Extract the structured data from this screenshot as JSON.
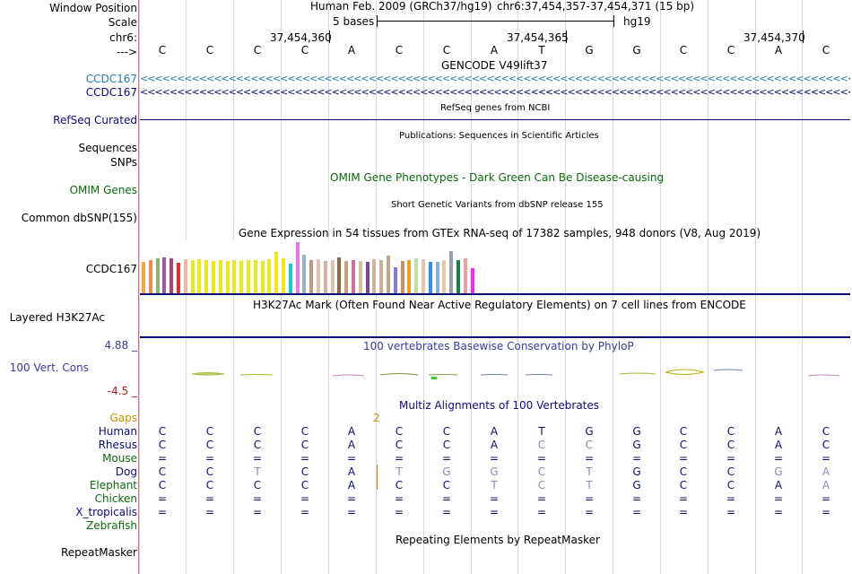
{
  "colors": {
    "navy": "#0c0c78",
    "gencode_blue": "#2a7bb0",
    "omim_green": "#0c6a0c",
    "cons_blue": "#3a3a9a",
    "cons_red": "#aa2020",
    "gaps_orange": "#d48a00",
    "dim_base": "#8a8ab8",
    "divider": "#e07070"
  },
  "header": {
    "window_position_label": "Window Position",
    "assembly": "Human Feb. 2009 (GRCh37/hg19)",
    "position": "chr6:37,454,357-37,454,371 (15 bp)",
    "scale_label": "Scale",
    "scale_text": "5 bases",
    "scale_db": "hg19",
    "chrom_label": "chr6:",
    "ticks": [
      "37,454,360",
      "37,454,365",
      "37,454,370"
    ],
    "strand_label": "--->"
  },
  "bases": [
    "C",
    "C",
    "C",
    "C",
    "A",
    "C",
    "C",
    "A",
    "T",
    "G",
    "G",
    "C",
    "C",
    "A",
    "C"
  ],
  "gencode": {
    "title": "GENCODE V49lift37",
    "rows": [
      {
        "name": "CCDC167",
        "arrows": "<<<<<<<<<<<<<<<<<<<<<<<<<<<<<<<<<<<<<<<<<<<<<<<<<<<<<<<<<<<<<<<<<<<<<<<<<<<<<<<<<<<<<<<<<<<<<<<<<<<<<<<<<<<<<<<<<<<<<<<<<"
      },
      {
        "name": "CCDC167",
        "arrows": "<<<<<<<<<<<<<<<<<<<<<<<<<<<<<<<<<<<<<<<<<<<<<<<<<<<<<<<<<<<<<<<<<<<<<<<<<<<<<<<<<<<<<<<<<<<<<<<<<<<<<<<<<<<<<<<<<<<<<<<<<"
      }
    ]
  },
  "refseq": {
    "title": "RefSeq genes from NCBI",
    "label": "RefSeq Curated"
  },
  "publications": {
    "title": "Publications: Sequences in Scientific Articles",
    "labels": [
      "Sequences",
      "SNPs"
    ]
  },
  "omim": {
    "title": "OMIM Gene Phenotypes - Dark Green Can Be Disease-causing",
    "label": "OMIM Genes"
  },
  "dbsnp": {
    "title": "Short Genetic Variants from dbSNP release 155",
    "label": "Common dbSNP(155)"
  },
  "gtex": {
    "title": "Gene Expression in 54 tissues from GTEx RNA-seq of 17382 samples, 948 donors (V8, Aug 2019)",
    "label": "CCDC167",
    "bars": [
      {
        "c": "#f5a542",
        "v": 36
      },
      {
        "c": "#f08a50",
        "v": 38
      },
      {
        "c": "#8fb070",
        "v": 40
      },
      {
        "c": "#9a5aa0",
        "v": 41
      },
      {
        "c": "#b04070",
        "v": 40
      },
      {
        "c": "#e82c2c",
        "v": 35
      },
      {
        "c": "#f0b8a0",
        "v": 39
      },
      {
        "c": "#eaea1a",
        "v": 38
      },
      {
        "c": "#eaea1a",
        "v": 39
      },
      {
        "c": "#eaea1a",
        "v": 38
      },
      {
        "c": "#eaea1a",
        "v": 37
      },
      {
        "c": "#eaea1a",
        "v": 38
      },
      {
        "c": "#eaea1a",
        "v": 37
      },
      {
        "c": "#eaea1a",
        "v": 38
      },
      {
        "c": "#eaea1a",
        "v": 37
      },
      {
        "c": "#eaea1a",
        "v": 38
      },
      {
        "c": "#eaea1a",
        "v": 38
      },
      {
        "c": "#eaea1a",
        "v": 37
      },
      {
        "c": "#eaea1a",
        "v": 39
      },
      {
        "c": "#eaea1a",
        "v": 47
      },
      {
        "c": "#eaea1a",
        "v": 40
      },
      {
        "c": "#1ec8c8",
        "v": 34
      },
      {
        "c": "#e678e6",
        "v": 58
      },
      {
        "c": "#9ab0d0",
        "v": 44
      },
      {
        "c": "#b89c82",
        "v": 38
      },
      {
        "c": "#e8c0b0",
        "v": 39
      },
      {
        "c": "#d8b0a8",
        "v": 37
      },
      {
        "c": "#e8c0b0",
        "v": 38
      },
      {
        "c": "#8a6a40",
        "v": 41
      },
      {
        "c": "#c8a080",
        "v": 37
      },
      {
        "c": "#c870a0",
        "v": 38
      },
      {
        "c": "#d8c0a0",
        "v": 37
      },
      {
        "c": "#7a4890",
        "v": 36
      },
      {
        "c": "#d8b0a0",
        "v": 39
      },
      {
        "c": "#c8b090",
        "v": 38
      },
      {
        "c": "#c0a890",
        "v": 43
      },
      {
        "c": "#8878e0",
        "v": 30
      },
      {
        "c": "#c89068",
        "v": 37
      },
      {
        "c": "#f0a020",
        "v": 38
      },
      {
        "c": "#c0e0a0",
        "v": 40
      },
      {
        "c": "#e0c8b0",
        "v": 39
      },
      {
        "c": "#3090e8",
        "v": 36
      },
      {
        "c": "#88b0d8",
        "v": 36
      },
      {
        "c": "#e8c8a8",
        "v": 38
      },
      {
        "c": "#98a0b0",
        "v": 48
      },
      {
        "c": "#188048",
        "v": 38
      },
      {
        "c": "#e8a0a0",
        "v": 40
      },
      {
        "c": "#ff20ff",
        "v": 29
      }
    ]
  },
  "h3k27ac": {
    "title": "H3K27Ac Mark (Often Found Near Active Regulatory Elements) on 7 cell lines from ENCODE",
    "label": "Layered H3K27Ac"
  },
  "conservation": {
    "title": "100 vertebrates Basewise Conservation by PhyloP",
    "label": "100 Vert. Cons",
    "max": "4.88 _",
    "min": "-4.5 _"
  },
  "multiz": {
    "title": "Multiz Alignments of 100 Vertebrates",
    "gaps_label": "Gaps",
    "gaps_value": "2",
    "species": [
      {
        "name": "Human",
        "color": "#0c0c78",
        "bases": [
          "C",
          "C",
          "C",
          "C",
          "A",
          "C",
          "C",
          "A",
          "T",
          "G",
          "G",
          "C",
          "C",
          "A",
          "C"
        ],
        "dim": [
          false,
          false,
          false,
          false,
          false,
          false,
          false,
          false,
          false,
          false,
          false,
          false,
          false,
          false,
          false
        ]
      },
      {
        "name": "Rhesus",
        "color": "#0c0c78",
        "bases": [
          "C",
          "C",
          "C",
          "C",
          "A",
          "C",
          "C",
          "A",
          "C",
          "C",
          "G",
          "C",
          "C",
          "A",
          "C"
        ],
        "dim": [
          false,
          false,
          false,
          false,
          false,
          false,
          false,
          false,
          true,
          true,
          false,
          false,
          false,
          false,
          false
        ]
      },
      {
        "name": "Mouse",
        "color": "#0c6a0c",
        "bases": [
          "=",
          "=",
          "=",
          "=",
          "=",
          "=",
          "=",
          "=",
          "=",
          "=",
          "=",
          "=",
          "=",
          "=",
          "="
        ],
        "dim": [
          false,
          false,
          false,
          false,
          false,
          false,
          false,
          false,
          false,
          false,
          false,
          false,
          false,
          false,
          false
        ]
      },
      {
        "name": "Dog",
        "color": "#0c0c78",
        "bases": [
          "C",
          "C",
          "T",
          "C",
          "A",
          "T",
          "G",
          "G",
          "C",
          "T",
          "G",
          "C",
          "C",
          "G",
          "A"
        ],
        "dim": [
          false,
          false,
          true,
          false,
          false,
          true,
          true,
          true,
          true,
          true,
          false,
          false,
          false,
          true,
          true
        ]
      },
      {
        "name": "Elephant",
        "color": "#0c6a0c",
        "bases": [
          "C",
          "C",
          "C",
          "C",
          "A",
          "C",
          "C",
          "T",
          "C",
          "T",
          "G",
          "C",
          "C",
          "A",
          "A"
        ],
        "dim": [
          false,
          false,
          false,
          false,
          false,
          false,
          false,
          true,
          true,
          true,
          false,
          false,
          false,
          false,
          true
        ]
      },
      {
        "name": "Chicken",
        "color": "#0c6a0c",
        "bases": [
          "=",
          "=",
          "=",
          "=",
          "=",
          "=",
          "=",
          "=",
          "=",
          "=",
          "=",
          "=",
          "=",
          "=",
          "="
        ],
        "dim": [
          false,
          false,
          false,
          false,
          false,
          false,
          false,
          false,
          false,
          false,
          false,
          false,
          false,
          false,
          false
        ]
      },
      {
        "name": "X_tropicalis",
        "color": "#0c0c78",
        "bases": [
          "=",
          "=",
          "=",
          "=",
          "=",
          "=",
          "=",
          "=",
          "=",
          "=",
          "=",
          "=",
          "=",
          "=",
          "="
        ],
        "dim": [
          false,
          false,
          false,
          false,
          false,
          false,
          false,
          false,
          false,
          false,
          false,
          false,
          false,
          false,
          false
        ]
      },
      {
        "name": "Zebrafish",
        "color": "#0c6a0c",
        "bases": [],
        "dim": []
      }
    ]
  },
  "repeatmasker": {
    "title": "Repeating Elements by RepeatMasker",
    "label": "RepeatMasker"
  }
}
